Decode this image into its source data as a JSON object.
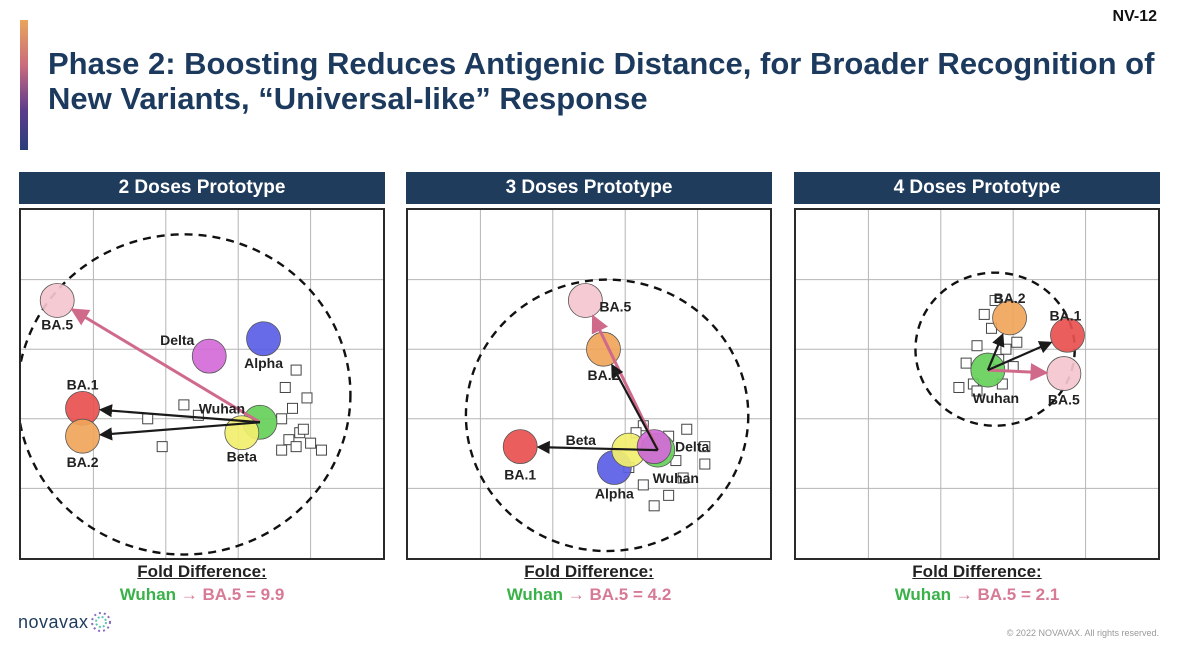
{
  "slide_id": "NV-12",
  "title": "Phase 2: Boosting Reduces Antigenic Distance, for Broader Recognition of New Variants, “Universal-like” Response",
  "colors": {
    "header_bg": "#1f3c5c",
    "Wuhan": "#66d05a",
    "Beta": "#f2ef6e",
    "Delta": "#d46ad8",
    "Alpha": "#5a5ee6",
    "BA.1": "#e8514f",
    "BA.2": "#f0a55a",
    "BA.5": "#f4c6cf",
    "arrow_dark": "#1a1a1a",
    "arrow_pink": "#d06a8a",
    "fold_green": "#3bb14a",
    "fold_pink": "#d77a95"
  },
  "fold_label": "Fold Difference:",
  "fold_prefix": "Wuhan",
  "fold_arrow": "→",
  "fold_middle": "BA.5 = ",
  "logo_text": "novavax",
  "copyright": "© 2022 NOVAVAX. All rights reserved.",
  "chart_data": [
    {
      "type": "scatter",
      "title": "2 Doses Prototype",
      "xlim": [
        0,
        10
      ],
      "ylim": [
        0,
        10
      ],
      "grid": true,
      "variants": [
        {
          "name": "BA.5",
          "x": 1.0,
          "y": 7.4
        },
        {
          "name": "Delta",
          "x": 5.2,
          "y": 5.8
        },
        {
          "name": "Alpha",
          "x": 6.7,
          "y": 6.3
        },
        {
          "name": "BA.1",
          "x": 1.7,
          "y": 4.3
        },
        {
          "name": "BA.2",
          "x": 1.7,
          "y": 3.5
        },
        {
          "name": "Wuhan",
          "x": 6.6,
          "y": 3.9
        },
        {
          "name": "Beta",
          "x": 6.1,
          "y": 3.6
        }
      ],
      "labels": [
        "BA.5",
        "Delta",
        "Alpha",
        "BA.1",
        "BA.2",
        "Wuhan",
        "Beta"
      ],
      "arrows": [
        {
          "from": "Wuhan",
          "to": "BA.5",
          "color": "pink"
        },
        {
          "from": "Wuhan",
          "to": "BA.1",
          "color": "dark"
        },
        {
          "from": "Wuhan",
          "to": "BA.2",
          "color": "dark"
        }
      ],
      "sera": [
        [
          7.6,
          5.4
        ],
        [
          7.3,
          4.9
        ],
        [
          7.9,
          4.6
        ],
        [
          7.5,
          4.3
        ],
        [
          7.2,
          4.0
        ],
        [
          4.5,
          4.4
        ],
        [
          4.9,
          4.1
        ],
        [
          3.5,
          4.0
        ],
        [
          7.7,
          3.6
        ],
        [
          7.4,
          3.4
        ],
        [
          8.0,
          3.3
        ],
        [
          7.6,
          3.2
        ],
        [
          8.3,
          3.1
        ],
        [
          7.2,
          3.1
        ],
        [
          3.9,
          3.2
        ],
        [
          7.8,
          3.7
        ]
      ],
      "circle": {
        "x": 4.5,
        "y": 4.7,
        "r": 4.6
      },
      "fold": {
        "label": "Fold Difference:",
        "from": "Wuhan",
        "to": "BA.5",
        "value": "9.9"
      }
    },
    {
      "type": "scatter",
      "title": "3 Doses Prototype",
      "xlim": [
        0,
        10
      ],
      "ylim": [
        0,
        10
      ],
      "grid": true,
      "variants": [
        {
          "name": "BA.5",
          "x": 4.9,
          "y": 7.4
        },
        {
          "name": "BA.2",
          "x": 5.4,
          "y": 6.0
        },
        {
          "name": "BA.1",
          "x": 3.1,
          "y": 3.2
        },
        {
          "name": "Alpha",
          "x": 5.7,
          "y": 2.6
        },
        {
          "name": "Beta",
          "x": 6.1,
          "y": 3.1
        },
        {
          "name": "Wuhan",
          "x": 6.9,
          "y": 3.1
        },
        {
          "name": "Delta",
          "x": 6.8,
          "y": 3.2
        }
      ],
      "labels": [
        "BA.5",
        "BA.2",
        "BA.1",
        "Beta",
        "Delta",
        "Wuhan",
        "Alpha"
      ],
      "arrows": [
        {
          "from": "Wuhan",
          "to": "BA.5",
          "color": "pink"
        },
        {
          "from": "Wuhan",
          "to": "BA.2",
          "color": "dark"
        },
        {
          "from": "Wuhan",
          "to": "BA.1",
          "color": "dark"
        }
      ],
      "sera": [
        [
          6.5,
          3.8
        ],
        [
          7.7,
          3.7
        ],
        [
          8.2,
          3.2
        ],
        [
          7.2,
          3.5
        ],
        [
          6.3,
          3.6
        ],
        [
          7.4,
          2.8
        ],
        [
          8.2,
          2.7
        ],
        [
          6.1,
          2.6
        ],
        [
          7.6,
          2.3
        ],
        [
          6.5,
          2.1
        ],
        [
          7.2,
          1.8
        ],
        [
          6.8,
          1.5
        ]
      ],
      "circle": {
        "x": 5.5,
        "y": 4.1,
        "r": 3.9
      },
      "fold": {
        "label": "Fold Difference:",
        "from": "Wuhan",
        "to": "BA.5",
        "value": "4.2"
      }
    },
    {
      "type": "scatter",
      "title": "4 Doses Prototype",
      "xlim": [
        0,
        10
      ],
      "ylim": [
        0,
        10
      ],
      "grid": true,
      "variants": [
        {
          "name": "BA.2",
          "x": 5.9,
          "y": 6.9
        },
        {
          "name": "BA.1",
          "x": 7.5,
          "y": 6.4
        },
        {
          "name": "BA.5",
          "x": 7.4,
          "y": 5.3
        },
        {
          "name": "Wuhan",
          "x": 5.3,
          "y": 5.4
        }
      ],
      "labels": [
        "BA.2",
        "BA.1",
        "BA.5",
        "Wuhan"
      ],
      "arrows": [
        {
          "from": "Wuhan",
          "to": "BA.5",
          "color": "pink"
        },
        {
          "from": "Wuhan",
          "to": "BA.1",
          "color": "dark"
        },
        {
          "from": "Wuhan",
          "to": "BA.2",
          "color": "dark"
        }
      ],
      "sera": [
        [
          5.5,
          7.4
        ],
        [
          5.2,
          7.0
        ],
        [
          5.4,
          6.6
        ],
        [
          5.0,
          6.1
        ],
        [
          5.8,
          6.0
        ],
        [
          5.6,
          5.7
        ],
        [
          4.9,
          5.0
        ],
        [
          4.5,
          4.9
        ],
        [
          5.0,
          4.8
        ],
        [
          5.7,
          5.0
        ],
        [
          6.0,
          5.5
        ],
        [
          4.7,
          5.6
        ],
        [
          6.1,
          6.2
        ]
      ],
      "circle": {
        "x": 5.5,
        "y": 6.0,
        "r": 2.2
      },
      "fold": {
        "label": "Fold Difference:",
        "from": "Wuhan",
        "to": "BA.5",
        "value": "2.1"
      }
    }
  ]
}
